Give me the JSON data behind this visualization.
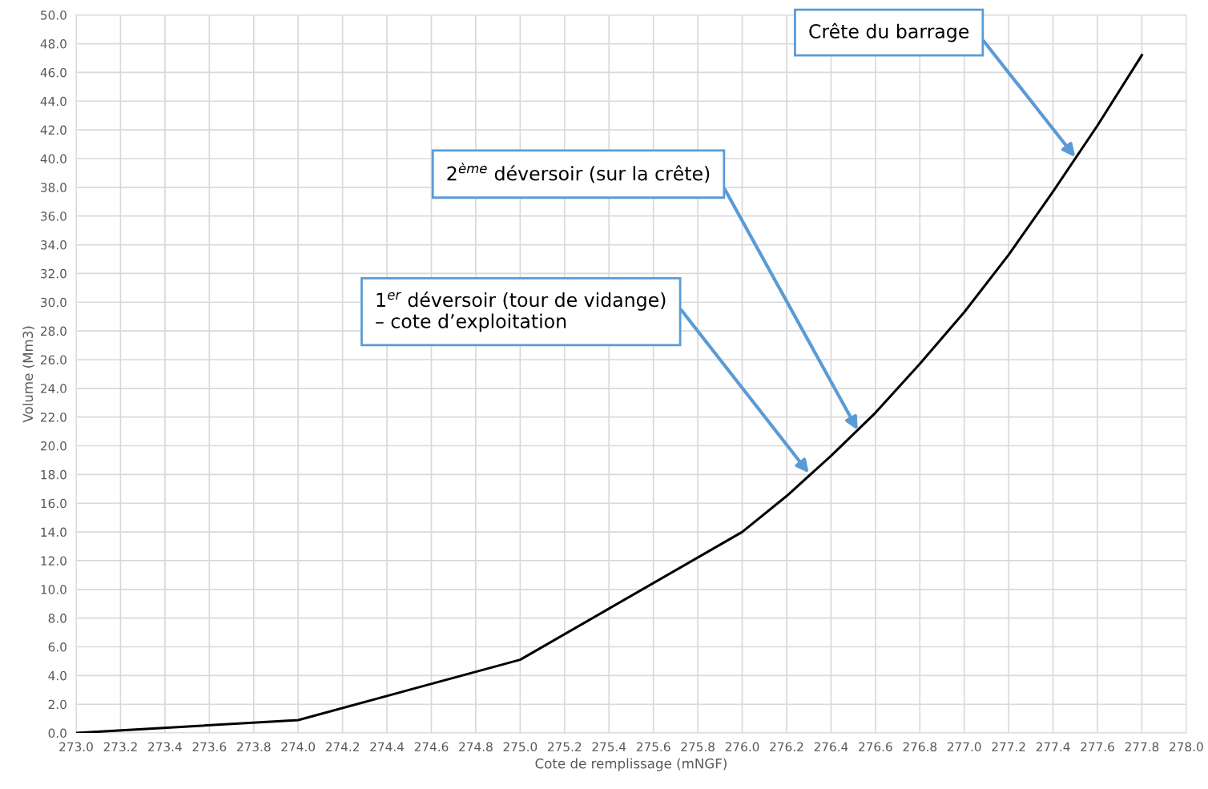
{
  "chart_data": {
    "type": "line",
    "xlabel": "Cote de remplissage (mNGF)",
    "ylabel": "Volume (Mm3)",
    "x": [
      273.0,
      274.0,
      275.0,
      276.0,
      276.2,
      276.4,
      276.6,
      276.8,
      277.0,
      277.2,
      277.4,
      277.6,
      277.8
    ],
    "series": [
      {
        "color": "#000000",
        "values": [
          0.0,
          0.9,
          5.1,
          14.0,
          16.5,
          19.3,
          22.3,
          25.7,
          29.3,
          33.3,
          37.7,
          42.3,
          47.2
        ]
      }
    ],
    "xlim": [
      273.0,
      278.0
    ],
    "ylim": [
      0.0,
      50.0
    ],
    "xticks": [
      {
        "value": 273.0,
        "label": "273.0"
      },
      {
        "value": 273.2,
        "label": "273.2"
      },
      {
        "value": 273.4,
        "label": "273.4"
      },
      {
        "value": 273.6,
        "label": "273.6"
      },
      {
        "value": 273.8,
        "label": "273.8"
      },
      {
        "value": 274.0,
        "label": "274.0"
      },
      {
        "value": 274.2,
        "label": "274.2"
      },
      {
        "value": 274.4,
        "label": "274.4"
      },
      {
        "value": 274.6,
        "label": "274.6"
      },
      {
        "value": 274.8,
        "label": "274.8"
      },
      {
        "value": 275.0,
        "label": "275.0"
      },
      {
        "value": 275.2,
        "label": "275.2"
      },
      {
        "value": 275.4,
        "label": "275.4"
      },
      {
        "value": 275.6,
        "label": "275.6"
      },
      {
        "value": 275.8,
        "label": "275.8"
      },
      {
        "value": 276.0,
        "label": "276.0"
      },
      {
        "value": 276.2,
        "label": "276.2"
      },
      {
        "value": 276.4,
        "label": "276.4"
      },
      {
        "value": 276.6,
        "label": "276.6"
      },
      {
        "value": 276.8,
        "label": "276.8"
      },
      {
        "value": 277.0,
        "label": "277.0"
      },
      {
        "value": 277.2,
        "label": "277.2"
      },
      {
        "value": 277.4,
        "label": "277.4"
      },
      {
        "value": 277.6,
        "label": "277.6"
      },
      {
        "value": 277.8,
        "label": "277.8"
      },
      {
        "value": 278.0,
        "label": "278.0"
      }
    ],
    "yticks": [
      {
        "value": 0,
        "label": "0.0"
      },
      {
        "value": 2,
        "label": "2.0"
      },
      {
        "value": 4,
        "label": "4.0"
      },
      {
        "value": 6,
        "label": "6.0"
      },
      {
        "value": 8,
        "label": "8.0"
      },
      {
        "value": 10,
        "label": "10.0"
      },
      {
        "value": 12,
        "label": "12.0"
      },
      {
        "value": 14,
        "label": "14.0"
      },
      {
        "value": 16,
        "label": "16.0"
      },
      {
        "value": 18,
        "label": "18.0"
      },
      {
        "value": 20,
        "label": "20.0"
      },
      {
        "value": 22,
        "label": "22.0"
      },
      {
        "value": 24,
        "label": "24.0"
      },
      {
        "value": 26,
        "label": "26.0"
      },
      {
        "value": 28,
        "label": "28.0"
      },
      {
        "value": 30,
        "label": "30.0"
      },
      {
        "value": 32,
        "label": "32.0"
      },
      {
        "value": 34,
        "label": "34.0"
      },
      {
        "value": 36,
        "label": "36.0"
      },
      {
        "value": 38,
        "label": "38.0"
      },
      {
        "value": 40,
        "label": "40.0"
      },
      {
        "value": 42,
        "label": "42.0"
      },
      {
        "value": 44,
        "label": "44.0"
      },
      {
        "value": 46,
        "label": "46.0"
      },
      {
        "value": 48,
        "label": "48.0"
      },
      {
        "value": 50,
        "label": "50.0"
      }
    ],
    "grid": true,
    "marker": "none",
    "line_style": "solid",
    "annotations": [
      {
        "text": "1$^{er}$ déversoir (tour de vidange)\n– cote d’exploitation",
        "x": 276.3,
        "y": 18.1
      },
      {
        "text": "2$^{ème}$ déversoir (sur la crête)",
        "x": 276.52,
        "y": 21.1
      },
      {
        "text": "Crête du barrage",
        "x": 277.5,
        "y": 40.1
      }
    ]
  }
}
